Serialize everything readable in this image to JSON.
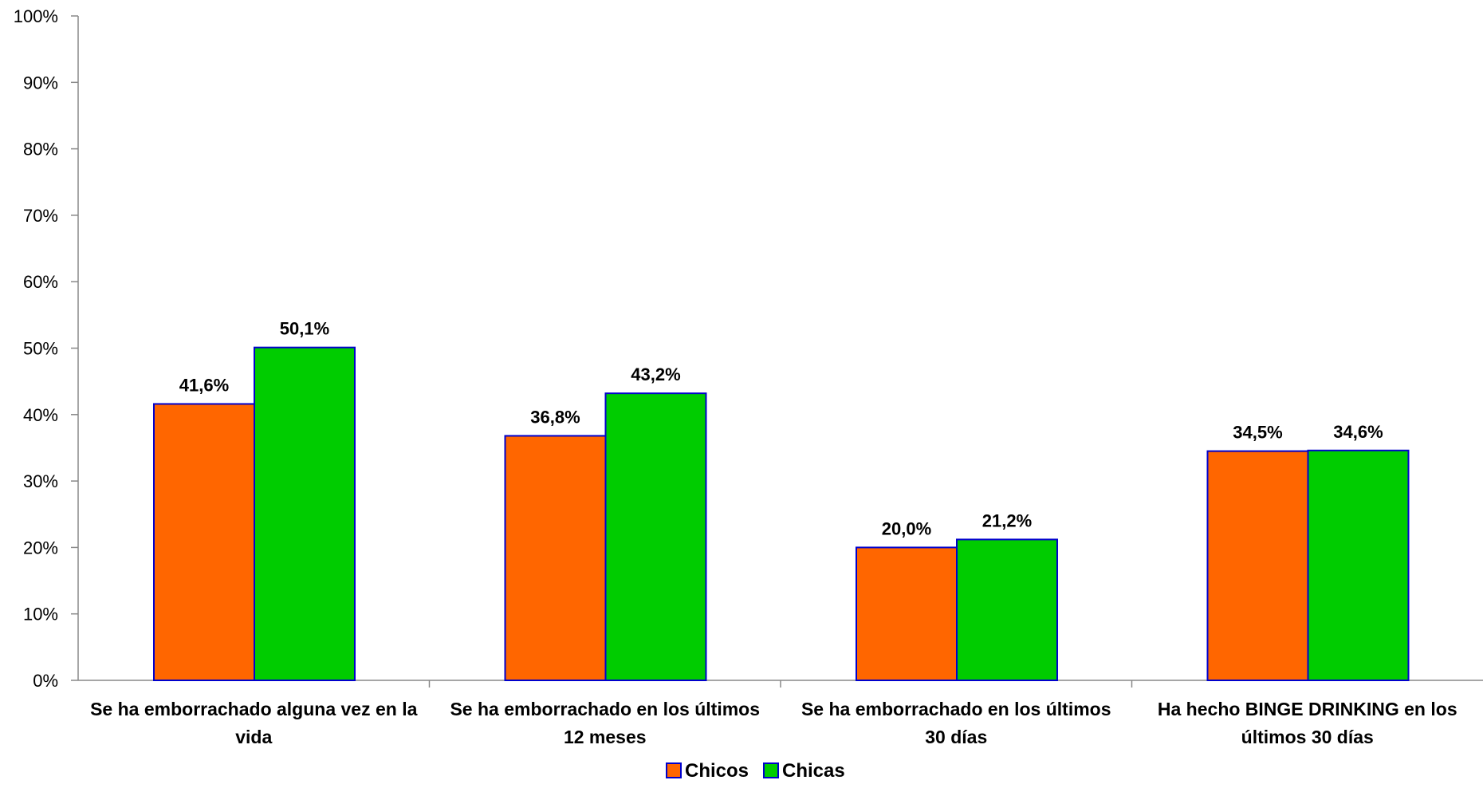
{
  "chart_data": {
    "type": "bar",
    "categories": [
      [
        "Se ha emborrachado alguna vez en la",
        "vida"
      ],
      [
        "Se ha emborrachado en los últimos",
        "12 meses"
      ],
      [
        "Se ha emborrachado en los últimos",
        "30 días"
      ],
      [
        "Ha hecho BINGE DRINKING en los",
        "últimos 30 días"
      ]
    ],
    "series": [
      {
        "name": "Chicos",
        "color": "#FF6600",
        "values": [
          41.6,
          36.8,
          20.0,
          34.5
        ],
        "labels": [
          "41,6%",
          "36,8%",
          "20,0%",
          "34,5%"
        ]
      },
      {
        "name": "Chicas",
        "color": "#00CC00",
        "values": [
          50.1,
          43.2,
          21.2,
          34.6
        ],
        "labels": [
          "50,1%",
          "43,2%",
          "21,2%",
          "34,6%"
        ]
      }
    ],
    "ylim": [
      0,
      100
    ],
    "y_ticks": [
      "0%",
      "10%",
      "20%",
      "30%",
      "40%",
      "50%",
      "60%",
      "70%",
      "80%",
      "90%",
      "100%"
    ],
    "bar_border_color": "#0000CC",
    "grid": false,
    "legend": "bottom-center",
    "title": "",
    "xlabel": "",
    "ylabel": ""
  }
}
